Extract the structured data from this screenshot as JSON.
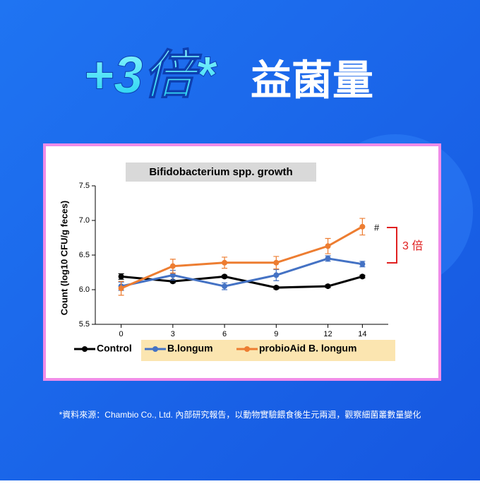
{
  "headline": {
    "multiplier": "+3倍*",
    "text": "益菌量"
  },
  "chart_data": {
    "type": "line",
    "title": "Bifidobacterium spp. growth",
    "ylabel": "Count (log10 CFU/g feces)",
    "x": [
      0,
      3,
      6,
      9,
      12,
      14
    ],
    "xlim": [
      -1.5,
      15.5
    ],
    "xticks": [
      0,
      3,
      6,
      9,
      12,
      14
    ],
    "ylim": [
      5.5,
      7.5
    ],
    "yticks": [
      5.5,
      {
        "value": 6,
        "label": "6.0"
      },
      6.5,
      {
        "value": 7,
        "label": "7.0"
      },
      7.5
    ],
    "series": [
      {
        "name": "Control",
        "color": "#000000",
        "values": [
          6.19,
          6.12,
          6.19,
          6.03,
          6.05,
          6.19
        ],
        "errors": [
          0.04,
          0.02,
          0.02,
          0.02,
          0.02,
          0.02
        ]
      },
      {
        "name": "B.longum",
        "color": "#4472c4",
        "values": [
          6.05,
          6.21,
          6.05,
          6.21,
          6.45,
          6.37
        ],
        "errors": [
          0.06,
          0.07,
          0.05,
          0.08,
          0.04,
          0.04
        ]
      },
      {
        "name": "probioAid B. longum",
        "color": "#ed7d31",
        "values": [
          6.02,
          6.34,
          6.39,
          6.39,
          6.63,
          6.91
        ],
        "errors": [
          0.1,
          0.1,
          0.08,
          0.09,
          0.11,
          0.12
        ]
      }
    ],
    "annotations": [
      {
        "text": "#"
      },
      {
        "text": "3 倍"
      }
    ],
    "legend": "bottom"
  },
  "footnote": "*資料來源：Chambio Co., Ltd. 內部研究報告，以動物實驗餵食後生元兩週，觀察細菌叢數量變化"
}
